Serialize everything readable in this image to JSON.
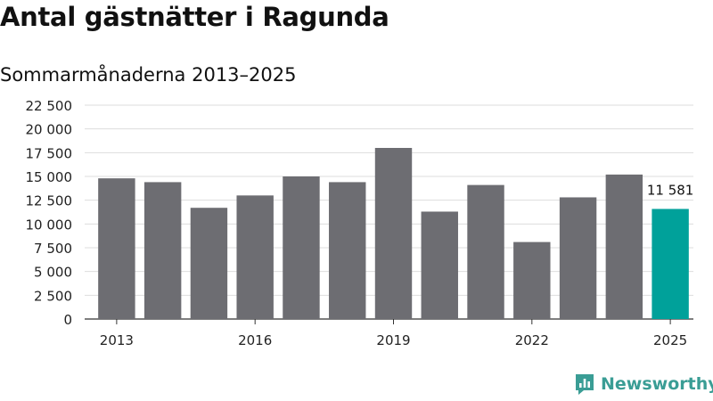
{
  "header": {
    "title": "Antal gästnätter i Ragunda",
    "subtitle": "Sommarmånaderna 2013–2025"
  },
  "brand": {
    "name": "Newsworthy",
    "icon": "newsworthy-logo-icon",
    "color": "#3a9d95"
  },
  "chart_data": {
    "type": "bar",
    "categories": [
      "2013",
      "2014",
      "2015",
      "2016",
      "2017",
      "2018",
      "2019",
      "2020",
      "2021",
      "2022",
      "2023",
      "2024",
      "2025"
    ],
    "values": [
      14800,
      14400,
      11700,
      13000,
      15000,
      14400,
      18000,
      11300,
      14100,
      8100,
      12800,
      15200,
      11581
    ],
    "x_tick_labels": [
      "2013",
      "2016",
      "2019",
      "2022",
      "2025"
    ],
    "y_ticks": [
      0,
      2500,
      5000,
      7500,
      10000,
      12500,
      15000,
      17500,
      20000,
      22500
    ],
    "y_tick_labels": [
      "0",
      "2 500",
      "5 000",
      "7 500",
      "10 000",
      "12 500",
      "15 000",
      "17 500",
      "20 000",
      "22 500"
    ],
    "ylim": [
      0,
      22500
    ],
    "grid": true,
    "highlight": {
      "category": "2025",
      "label": "11 581"
    },
    "colors": {
      "bar": "#6d6d72",
      "highlight": "#00a19a",
      "grid": "#dddddd",
      "axis": "#333333"
    }
  }
}
